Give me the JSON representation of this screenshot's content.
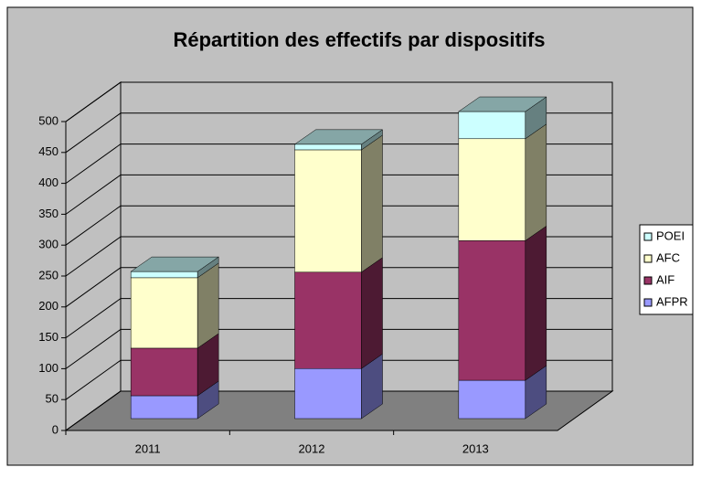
{
  "chart_data": {
    "type": "bar3d_stacked",
    "title": "Répartition des effectifs par dispositifs",
    "categories": [
      "2011",
      "2012",
      "2013"
    ],
    "series": [
      {
        "name": "AFPR",
        "color": "#9999ff",
        "values": [
          37,
          81,
          62
        ]
      },
      {
        "name": "AIF",
        "color": "#993366",
        "values": [
          77,
          156,
          226
        ]
      },
      {
        "name": "AFC",
        "color": "#ffffcc",
        "values": [
          114,
          198,
          165
        ]
      },
      {
        "name": "POEI",
        "color": "#ccffff",
        "values": [
          10,
          9,
          44
        ]
      }
    ],
    "ylim": [
      0,
      500
    ],
    "yticks": [
      0,
      50,
      100,
      150,
      200,
      250,
      300,
      350,
      400,
      450,
      500
    ],
    "grid": true,
    "legend": "right"
  }
}
